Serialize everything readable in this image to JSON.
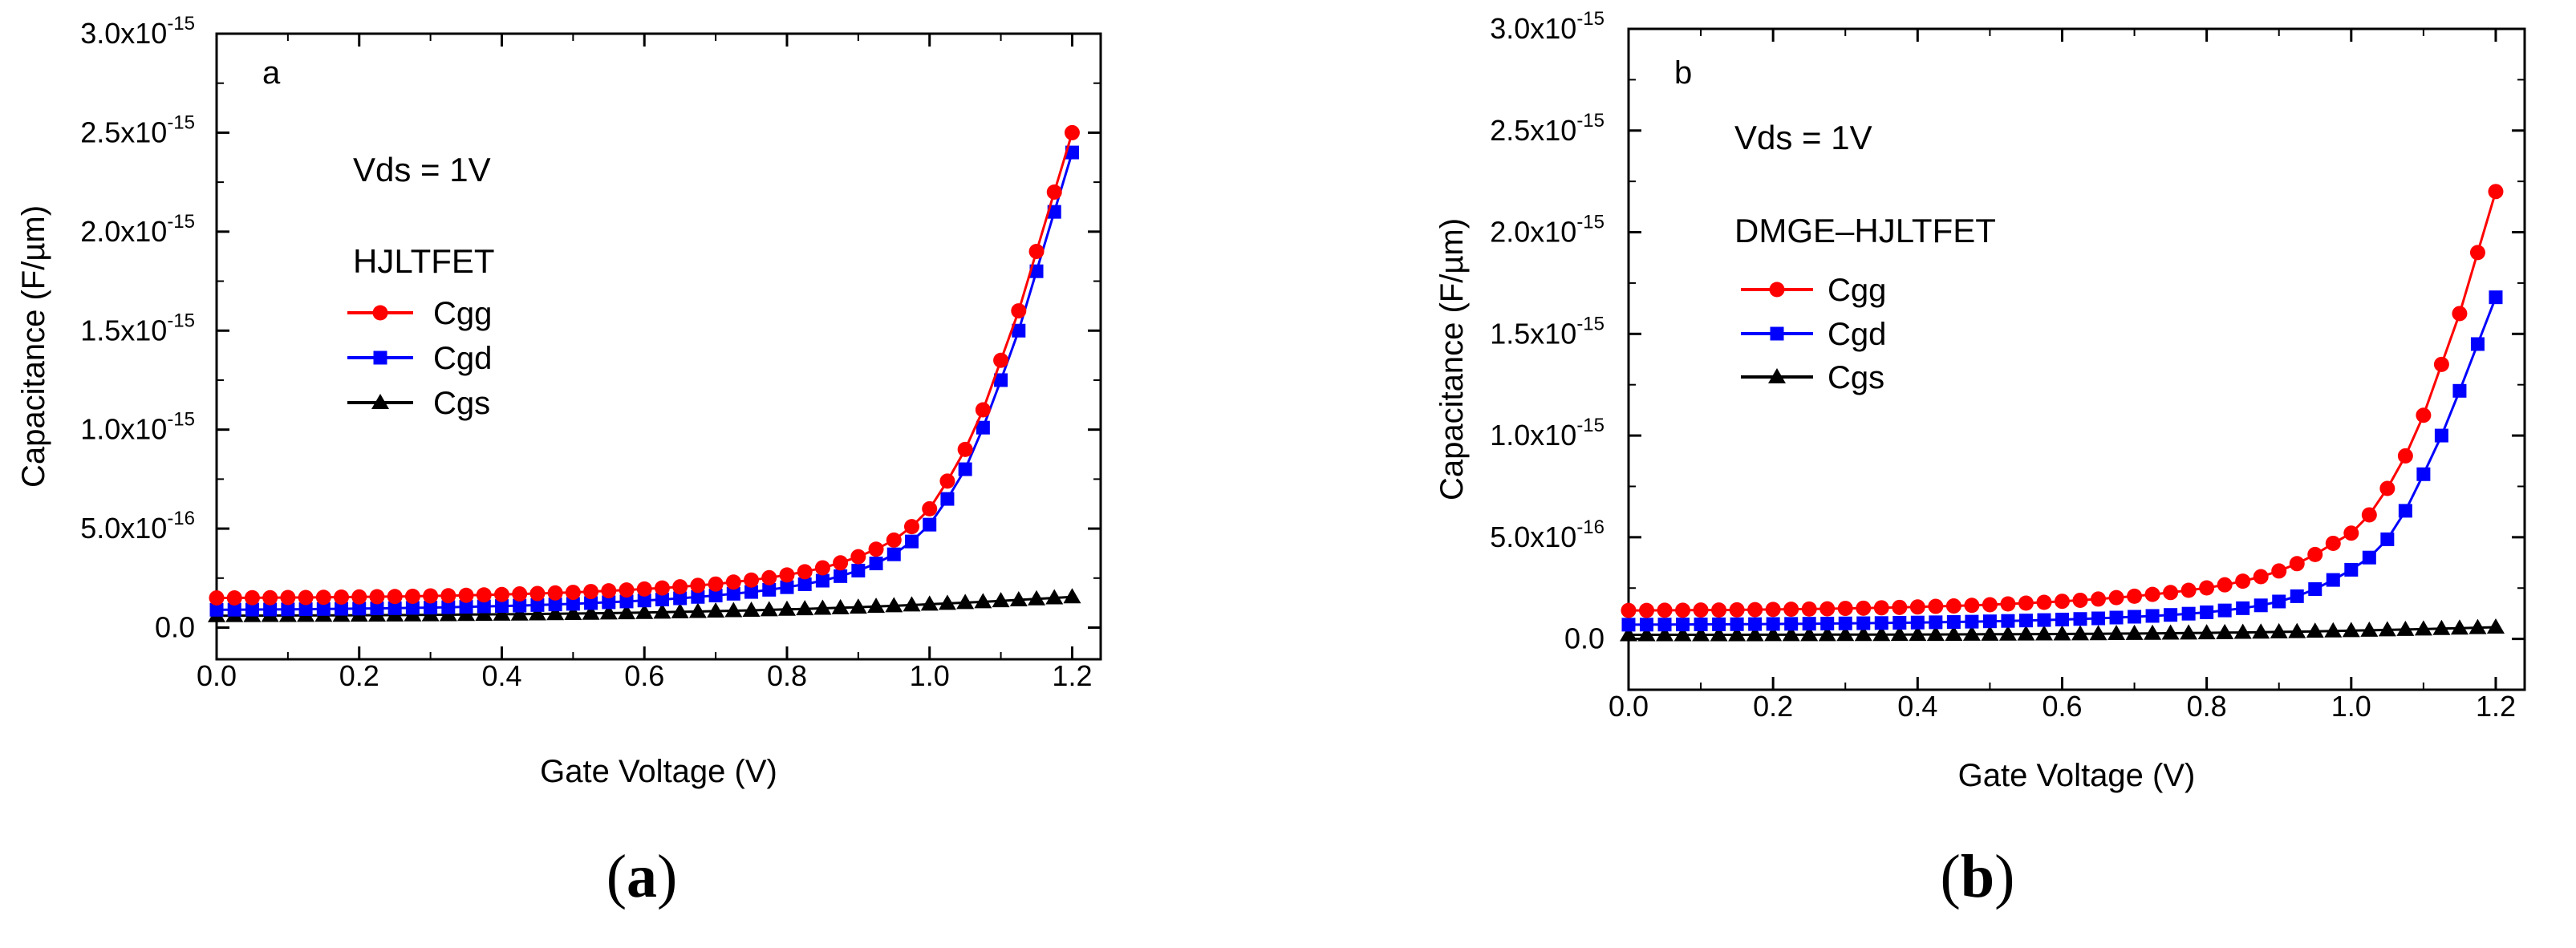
{
  "chart_data": [
    {
      "type": "line",
      "panel_label": "a",
      "caption_letter": "a",
      "xlabel": "Gate Voltage (V)",
      "ylabel": "Capacitance (F/µm)",
      "xlim": [
        0.0,
        1.24
      ],
      "ylim": [
        -1.6e-16,
        3e-15
      ],
      "xticks": [
        0.0,
        0.2,
        0.4,
        0.6,
        0.8,
        1.0,
        1.2
      ],
      "xtick_labels": [
        "0.0",
        "0.2",
        "0.4",
        "0.6",
        "0.8",
        "1.0",
        "1.2"
      ],
      "yticks": [
        {
          "value": 0.0,
          "mant": "0.0",
          "exp": ""
        },
        {
          "value": 5e-16,
          "mant": "5.0x10",
          "exp": "-16"
        },
        {
          "value": 1e-15,
          "mant": "1.0x10",
          "exp": "-15"
        },
        {
          "value": 1.5e-15,
          "mant": "1.5x10",
          "exp": "-15"
        },
        {
          "value": 2e-15,
          "mant": "2.0x10",
          "exp": "-15"
        },
        {
          "value": 2.5e-15,
          "mant": "2.5x10",
          "exp": "-15"
        },
        {
          "value": 3e-15,
          "mant": "3.0x10",
          "exp": "-15"
        }
      ],
      "annotation": "Vds = 1V",
      "legend_title": "HJLTFET",
      "legend_position": "center-left",
      "x": [
        0.0,
        0.025,
        0.05,
        0.075,
        0.1,
        0.125,
        0.15,
        0.175,
        0.2,
        0.225,
        0.25,
        0.275,
        0.3,
        0.325,
        0.35,
        0.375,
        0.4,
        0.425,
        0.45,
        0.475,
        0.5,
        0.525,
        0.55,
        0.575,
        0.6,
        0.625,
        0.65,
        0.675,
        0.7,
        0.725,
        0.75,
        0.775,
        0.8,
        0.825,
        0.85,
        0.875,
        0.9,
        0.925,
        0.95,
        0.975,
        1.0,
        1.025,
        1.05,
        1.075,
        1.1,
        1.125,
        1.15,
        1.175,
        1.2
      ],
      "series": [
        {
          "name": "Cgg",
          "color": "#ff0000",
          "marker": "circle",
          "values": [
            1.5e-16,
            1.5e-16,
            1.51e-16,
            1.51e-16,
            1.52e-16,
            1.52e-16,
            1.53e-16,
            1.54e-16,
            1.55e-16,
            1.56e-16,
            1.57e-16,
            1.58e-16,
            1.6e-16,
            1.61e-16,
            1.63e-16,
            1.65e-16,
            1.67e-16,
            1.7e-16,
            1.72e-16,
            1.75e-16,
            1.78e-16,
            1.82e-16,
            1.86e-16,
            1.9e-16,
            1.95e-16,
            2e-16,
            2.06e-16,
            2.13e-16,
            2.2e-16,
            2.3e-16,
            2.4e-16,
            2.52e-16,
            2.66e-16,
            2.82e-16,
            3.02e-16,
            3.27e-16,
            3.58e-16,
            3.96e-16,
            4.42e-16,
            5.1e-16,
            6e-16,
            7.4e-16,
            9e-16,
            1.1e-15,
            1.35e-15,
            1.6e-15,
            1.9e-15,
            2.2e-15,
            2.5e-15
          ]
        },
        {
          "name": "Cgd",
          "color": "#0000ff",
          "marker": "square",
          "values": [
            9e-17,
            9.05e-17,
            9.1e-17,
            9.15e-17,
            9.2e-17,
            9.3e-17,
            9.4e-17,
            9.5e-17,
            9.6e-17,
            9.7e-17,
            9.8e-17,
            9.95e-17,
            1.01e-16,
            1.03e-16,
            1.05e-16,
            1.07e-16,
            1.09e-16,
            1.11e-16,
            1.14e-16,
            1.17e-16,
            1.2e-16,
            1.24e-16,
            1.28e-16,
            1.32e-16,
            1.37e-16,
            1.42e-16,
            1.48e-16,
            1.55e-16,
            1.62e-16,
            1.71e-16,
            1.8e-16,
            1.91e-16,
            2.04e-16,
            2.19e-16,
            2.37e-16,
            2.6e-16,
            2.88e-16,
            3.24e-16,
            3.7e-16,
            4.35e-16,
            5.2e-16,
            6.5e-16,
            8e-16,
            1.01e-15,
            1.25e-15,
            1.5e-15,
            1.8e-15,
            2.1e-15,
            2.4e-15
          ]
        },
        {
          "name": "Cgs",
          "color": "#000000",
          "marker": "triangle",
          "values": [
            6e-17,
            6.02e-17,
            6.05e-17,
            6.07e-17,
            6.1e-17,
            6.13e-17,
            6.16e-17,
            6.2e-17,
            6.24e-17,
            6.28e-17,
            6.33e-17,
            6.38e-17,
            6.44e-17,
            6.5e-17,
            6.57e-17,
            6.64e-17,
            6.72e-17,
            6.8e-17,
            6.89e-17,
            6.99e-17,
            7.1e-17,
            7.21e-17,
            7.34e-17,
            7.47e-17,
            7.61e-17,
            7.77e-17,
            7.93e-17,
            8.11e-17,
            8.3e-17,
            8.5e-17,
            8.72e-17,
            8.95e-17,
            9.2e-17,
            9.46e-17,
            9.74e-17,
            1e-16,
            1.03e-16,
            1.07e-16,
            1.1e-16,
            1.14e-16,
            1.18e-16,
            1.22e-16,
            1.26e-16,
            1.3e-16,
            1.35e-16,
            1.4e-16,
            1.45e-16,
            1.5e-16,
            1.55e-16
          ]
        }
      ]
    },
    {
      "type": "line",
      "panel_label": "b",
      "caption_letter": "b",
      "xlabel": "Gate Voltage (V)",
      "ylabel": "Capacitance (F/µm)",
      "xlim": [
        0.0,
        1.24
      ],
      "ylim": [
        -2.5e-16,
        3e-15
      ],
      "xticks": [
        0.0,
        0.2,
        0.4,
        0.6,
        0.8,
        1.0,
        1.2
      ],
      "xtick_labels": [
        "0.0",
        "0.2",
        "0.4",
        "0.6",
        "0.8",
        "1.0",
        "1.2"
      ],
      "yticks": [
        {
          "value": 0.0,
          "mant": "0.0",
          "exp": ""
        },
        {
          "value": 5e-16,
          "mant": "5.0x10",
          "exp": "-16"
        },
        {
          "value": 1e-15,
          "mant": "1.0x10",
          "exp": "-15"
        },
        {
          "value": 1.5e-15,
          "mant": "1.5x10",
          "exp": "-15"
        },
        {
          "value": 2e-15,
          "mant": "2.0x10",
          "exp": "-15"
        },
        {
          "value": 2.5e-15,
          "mant": "2.5x10",
          "exp": "-15"
        },
        {
          "value": 3e-15,
          "mant": "3.0x10",
          "exp": "-15"
        }
      ],
      "annotation": "Vds = 1V",
      "legend_title": "DMGE–HJLTFET",
      "legend_position": "center-left",
      "x": [
        0.0,
        0.025,
        0.05,
        0.075,
        0.1,
        0.125,
        0.15,
        0.175,
        0.2,
        0.225,
        0.25,
        0.275,
        0.3,
        0.325,
        0.35,
        0.375,
        0.4,
        0.425,
        0.45,
        0.475,
        0.5,
        0.525,
        0.55,
        0.575,
        0.6,
        0.625,
        0.65,
        0.675,
        0.7,
        0.725,
        0.75,
        0.775,
        0.8,
        0.825,
        0.85,
        0.875,
        0.9,
        0.925,
        0.95,
        0.975,
        1.0,
        1.025,
        1.05,
        1.075,
        1.1,
        1.125,
        1.15,
        1.175,
        1.2
      ],
      "series": [
        {
          "name": "Cgg",
          "color": "#ff0000",
          "marker": "circle",
          "values": [
            1.4e-16,
            1.4e-16,
            1.41e-16,
            1.41e-16,
            1.42e-16,
            1.42e-16,
            1.43e-16,
            1.44e-16,
            1.45e-16,
            1.46e-16,
            1.47e-16,
            1.48e-16,
            1.5e-16,
            1.51e-16,
            1.53e-16,
            1.55e-16,
            1.57e-16,
            1.6e-16,
            1.62e-16,
            1.65e-16,
            1.68e-16,
            1.72e-16,
            1.76e-16,
            1.8e-16,
            1.85e-16,
            1.9e-16,
            1.96e-16,
            2.03e-16,
            2.1e-16,
            2.19e-16,
            2.28e-16,
            2.39e-16,
            2.51e-16,
            2.66e-16,
            2.84e-16,
            3.06e-16,
            3.34e-16,
            3.7e-16,
            4.15e-16,
            4.7e-16,
            5.2e-16,
            6.1e-16,
            7.4e-16,
            9e-16,
            1.1e-15,
            1.35e-15,
            1.6e-15,
            1.9e-15,
            2.2e-15
          ]
        },
        {
          "name": "Cgd",
          "color": "#0000ff",
          "marker": "square",
          "values": [
            7e-17,
            7.03e-17,
            7.06e-17,
            7.1e-17,
            7.14e-17,
            7.18e-17,
            7.23e-17,
            7.28e-17,
            7.34e-17,
            7.4e-17,
            7.47e-17,
            7.55e-17,
            7.63e-17,
            7.72e-17,
            7.82e-17,
            7.93e-17,
            8.05e-17,
            8.18e-17,
            8.32e-17,
            8.48e-17,
            8.65e-17,
            8.84e-17,
            9.05e-17,
            9.28e-17,
            9.53e-17,
            9.81e-17,
            1.01e-16,
            1.05e-16,
            1.09e-16,
            1.13e-16,
            1.18e-16,
            1.24e-16,
            1.31e-16,
            1.4e-16,
            1.51e-16,
            1.65e-16,
            1.84e-16,
            2.1e-16,
            2.45e-16,
            2.9e-16,
            3.4e-16,
            4e-16,
            4.9e-16,
            6.3e-16,
            8.1e-16,
            1e-15,
            1.22e-15,
            1.45e-15,
            1.68e-15
          ]
        },
        {
          "name": "Cgs",
          "color": "#000000",
          "marker": "triangle",
          "values": [
            2e-17,
            2e-17,
            2.01e-17,
            2.01e-17,
            2.02e-17,
            2.02e-17,
            2.03e-17,
            2.04e-17,
            2.05e-17,
            2.06e-17,
            2.07e-17,
            2.08e-17,
            2.1e-17,
            2.11e-17,
            2.13e-17,
            2.15e-17,
            2.17e-17,
            2.19e-17,
            2.22e-17,
            2.25e-17,
            2.28e-17,
            2.31e-17,
            2.35e-17,
            2.39e-17,
            2.43e-17,
            2.48e-17,
            2.53e-17,
            2.59e-17,
            2.65e-17,
            2.72e-17,
            2.8e-17,
            2.88e-17,
            2.97e-17,
            3.07e-17,
            3.18e-17,
            3.3e-17,
            3.43e-17,
            3.57e-17,
            3.72e-17,
            3.88e-17,
            4.05e-17,
            4.23e-17,
            4.42e-17,
            4.62e-17,
            4.83e-17,
            5.05e-17,
            5.28e-17,
            5.52e-17,
            5.77e-17
          ]
        }
      ]
    }
  ]
}
